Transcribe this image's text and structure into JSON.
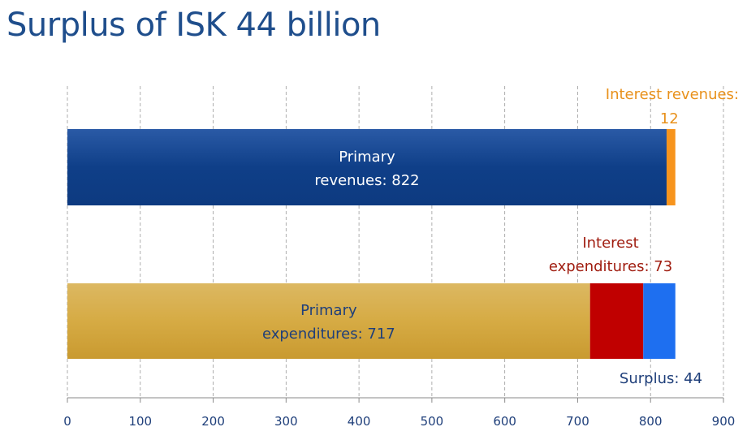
{
  "title": "Surplus of ISK 44 billion",
  "colors": {
    "primary_revenues": "#1a4a94",
    "interest_revenues": "#f7941d",
    "primary_expenditures": "#d9ae48",
    "interest_expenditures": "#c00000",
    "surplus": "#1e6ff0",
    "label_dark": "#1f3f7a",
    "label_orange": "#e8911c",
    "label_red": "#a01d10"
  },
  "chart_data": {
    "type": "bar",
    "orientation": "horizontal",
    "stacked": true,
    "xlim": [
      0,
      900
    ],
    "x_ticks": [
      "0",
      "100",
      "200",
      "300",
      "400",
      "500",
      "600",
      "700",
      "800",
      "900"
    ],
    "grid": "vertical-dashed",
    "bars": [
      {
        "segments": [
          {
            "key": "primary_revenues",
            "value": 822,
            "label_line1": "Primary",
            "label_line2": "revenues:  822"
          },
          {
            "key": "interest_revenues",
            "value": 12,
            "label_line1": "Interest revenues:",
            "label_line2": "12"
          }
        ]
      },
      {
        "segments": [
          {
            "key": "primary_expenditures",
            "value": 717,
            "label_line1": "Primary",
            "label_line2": "expenditures:  717"
          },
          {
            "key": "interest_expenditures",
            "value": 73,
            "label_line1": "Interest",
            "label_line2": "expenditures:  73"
          },
          {
            "key": "surplus",
            "value": 44,
            "label_line1": "Surplus:  44"
          }
        ]
      }
    ]
  }
}
